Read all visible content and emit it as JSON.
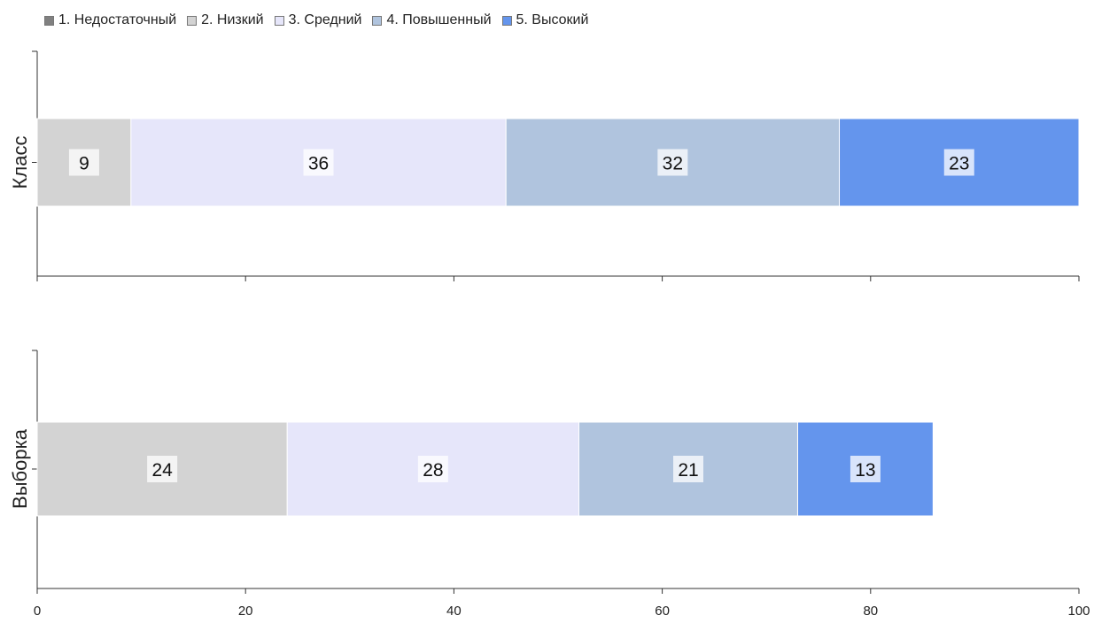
{
  "chart_data": {
    "type": "bar",
    "orientation": "horizontal",
    "stacked": true,
    "categories": [
      "Класс",
      "Выборка"
    ],
    "series": [
      {
        "name": "1. Недостаточный",
        "color": "#808080",
        "values": [
          0,
          0
        ]
      },
      {
        "name": "2. Низкий",
        "color": "#d3d3d3",
        "values": [
          9,
          24
        ]
      },
      {
        "name": "3. Средний",
        "color": "#e6e6fa",
        "values": [
          36,
          28
        ]
      },
      {
        "name": "4. Повышенный",
        "color": "#b0c4de",
        "values": [
          32,
          21
        ]
      },
      {
        "name": "5. Высокий",
        "color": "#6495ed",
        "values": [
          23,
          13
        ]
      }
    ],
    "xlim": [
      0,
      100
    ],
    "xticks": [
      "0",
      "20",
      "40",
      "60",
      "80",
      "100"
    ],
    "legend_position": "top-left",
    "grid": false
  }
}
